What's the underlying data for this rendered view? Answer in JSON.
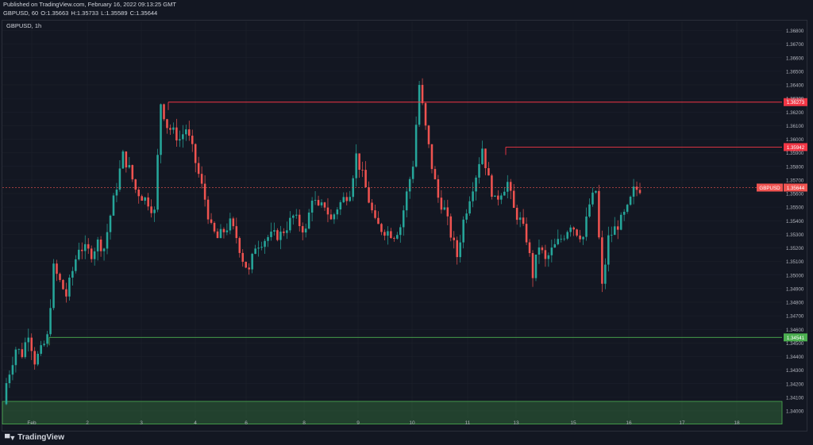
{
  "header": {
    "published": "Published on TradingView.com, February 16, 2022 09:13:25 GMT",
    "symbol_line": "GBPUSD, 60",
    "o": "O:1.35663",
    "h": "H:1.35733",
    "l": "L:1.35589",
    "c": "C:1.35644"
  },
  "brand": {
    "name": "TradingView"
  },
  "colors": {
    "background": "#131722",
    "up": "#26a69a",
    "down": "#ef5350",
    "resistance": "#f23645",
    "support": "#4caf50",
    "grid": "#1e222d"
  },
  "chart_data": {
    "type": "candlestick",
    "title": "GBPUSD, 1h",
    "ylim": [
      1.3395,
      1.3688
    ],
    "y_ticks": [
      "1.36800",
      "1.36700",
      "1.36600",
      "1.36500",
      "1.36400",
      "1.36300",
      "1.36200",
      "1.36100",
      "1.36000",
      "1.35900",
      "1.35800",
      "1.35700",
      "1.35600",
      "1.35500",
      "1.35400",
      "1.35300",
      "1.35200",
      "1.35100",
      "1.35000",
      "1.34900",
      "1.34800",
      "1.34700",
      "1.34600",
      "1.34500",
      "1.34400",
      "1.34300",
      "1.34200",
      "1.34100",
      "1.34000"
    ],
    "x_ticks": [
      "Feb",
      "2",
      "3",
      "4",
      "6",
      "8",
      "9",
      "10",
      "11",
      "13",
      "15",
      "16",
      "17",
      "18"
    ],
    "current_price": {
      "value": 1.35644,
      "label": "1.35644",
      "tag": "GBPUSD"
    },
    "levels": [
      {
        "value": 1.36273,
        "label": "1.36273",
        "kind": "resistance"
      },
      {
        "value": 1.35942,
        "label": "1.35942",
        "kind": "resistance"
      },
      {
        "value": 1.34541,
        "label": "1.34541",
        "kind": "support"
      }
    ],
    "demand_zone": {
      "low": 1.3395,
      "high": 1.3407
    },
    "path": [
      [
        0,
        1.3412
      ],
      [
        2,
        1.3446
      ],
      [
        3,
        1.3442
      ],
      [
        4,
        1.3458
      ],
      [
        5,
        1.3437
      ],
      [
        6,
        1.3444
      ],
      [
        7,
        1.3454
      ],
      [
        8,
        1.3505
      ],
      [
        10,
        1.3485
      ],
      [
        12,
        1.3521
      ],
      [
        14,
        1.3516
      ],
      [
        15,
        1.3524
      ],
      [
        16,
        1.352
      ],
      [
        17,
        1.3544
      ],
      [
        19,
        1.3588
      ],
      [
        20,
        1.3578
      ],
      [
        21,
        1.3563
      ],
      [
        22,
        1.3558
      ],
      [
        23,
        1.3554
      ],
      [
        24,
        1.3546
      ],
      [
        25,
        1.3627
      ],
      [
        26,
        1.361
      ],
      [
        28,
        1.36
      ],
      [
        29,
        1.3608
      ],
      [
        30,
        1.3592
      ],
      [
        31,
        1.3574
      ],
      [
        32,
        1.3556
      ],
      [
        33,
        1.3534
      ],
      [
        34,
        1.3527
      ],
      [
        36,
        1.3538
      ],
      [
        37,
        1.3528
      ],
      [
        38,
        1.3512
      ],
      [
        39,
        1.3502
      ],
      [
        40,
        1.3522
      ],
      [
        42,
        1.3528
      ],
      [
        44,
        1.353
      ],
      [
        45,
        1.3536
      ],
      [
        46,
        1.3543
      ],
      [
        48,
        1.3532
      ],
      [
        49,
        1.3558
      ],
      [
        50,
        1.3548
      ],
      [
        51,
        1.3552
      ],
      [
        52,
        1.354
      ],
      [
        53,
        1.355
      ],
      [
        55,
        1.3562
      ],
      [
        56,
        1.3588
      ],
      [
        57,
        1.3573
      ],
      [
        58,
        1.3555
      ],
      [
        59,
        1.3538
      ],
      [
        60,
        1.3534
      ],
      [
        61,
        1.3532
      ],
      [
        62,
        1.353
      ],
      [
        63,
        1.3536
      ],
      [
        64,
        1.356
      ],
      [
        65,
        1.3582
      ],
      [
        66,
        1.364
      ],
      [
        67,
        1.3608
      ],
      [
        68,
        1.358
      ],
      [
        69,
        1.3557
      ],
      [
        70,
        1.3548
      ],
      [
        71,
        1.353
      ],
      [
        72,
        1.3514
      ],
      [
        73,
        1.354
      ],
      [
        74,
        1.3558
      ],
      [
        75,
        1.3574
      ],
      [
        76,
        1.3594
      ],
      [
        77,
        1.357
      ],
      [
        78,
        1.3554
      ],
      [
        79,
        1.3562
      ],
      [
        80,
        1.3568
      ],
      [
        81,
        1.3548
      ],
      [
        82,
        1.354
      ],
      [
        83,
        1.3527
      ],
      [
        84,
        1.35
      ],
      [
        85,
        1.3522
      ],
      [
        86,
        1.351
      ],
      [
        87,
        1.3518
      ],
      [
        88,
        1.3524
      ],
      [
        89,
        1.353
      ],
      [
        90,
        1.3538
      ],
      [
        91,
        1.3532
      ],
      [
        92,
        1.3528
      ],
      [
        93,
        1.3552
      ],
      [
        94,
        1.3562
      ],
      [
        95,
        1.3491
      ],
      [
        96,
        1.3527
      ],
      [
        97,
        1.3534
      ],
      [
        98,
        1.354
      ],
      [
        99,
        1.3548
      ],
      [
        100,
        1.3562
      ],
      [
        101,
        1.3564
      ]
    ]
  }
}
